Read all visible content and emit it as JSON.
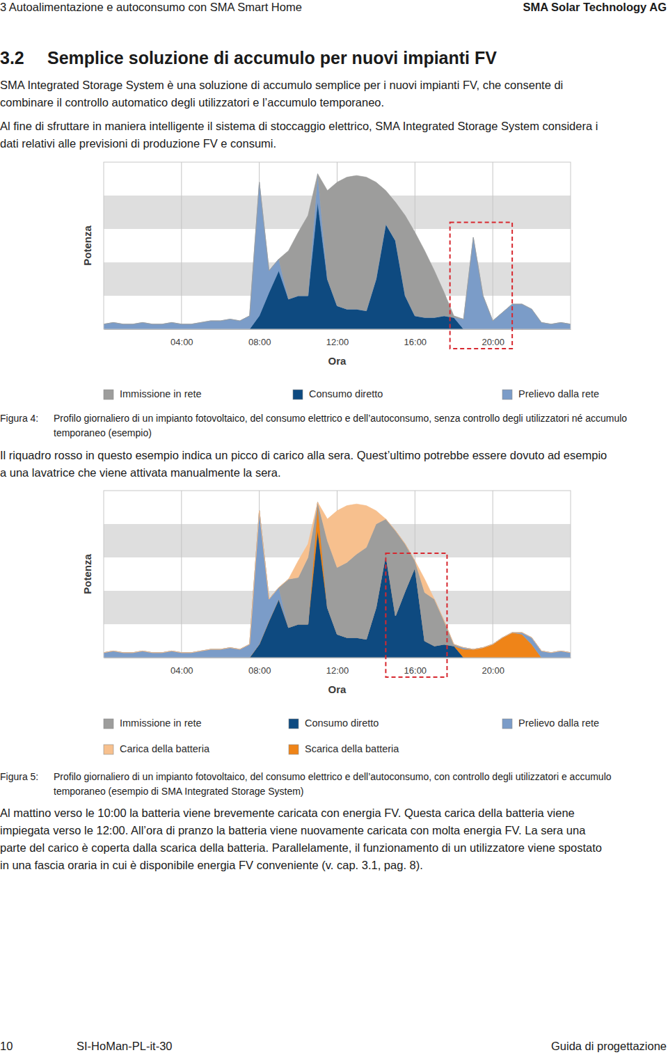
{
  "document": {
    "header_left": "3 Autoalimentazione e autoconsumo con SMA Smart Home",
    "header_right": "SMA Solar Technology AG",
    "section_number": "3.2",
    "section_title": "Semplice soluzione di accumulo per nuovi impianti FV",
    "intro": [
      [
        "SMA Integrated Storage System è una soluzione di accumulo semplice per i nuovi impianti FV, che consente di",
        "combinare il controllo automatico degli utilizzatori e l’accumulo temporaneo."
      ],
      [
        "Al fine di sfruttare in maniera intelligente il sistema di stoccaggio elettrico, SMA Integrated Storage System considera i",
        "dati relativi alle previsioni di produzione FV e consumi."
      ]
    ],
    "figures": [
      {
        "label": "Figura 4:",
        "caption": [
          "Profilo giornaliero di un impianto fotovoltaico, del consumo elettrico e dell’autoconsumo, senza controllo degli utilizzatori né accumulo",
          "temporaneo (esempio)"
        ]
      },
      {
        "label": "Figura 5:",
        "caption": [
          "Profilo giornaliero di un impianto fotovoltaico, del consumo elettrico e dell’autoconsumo, con controllo degli utilizzatori e accumulo",
          "temporaneo (esempio di SMA Integrated Storage System)"
        ]
      }
    ],
    "figure_notes": [
      [
        "Il riquadro rosso in questo esempio indica un picco di carico alla sera. Quest’ultimo potrebbe essere dovuto ad esempio",
        "a una lavatrice che viene attivata manualmente la sera."
      ],
      [
        "Al mattino verso le 10:00 la batteria viene brevemente caricata con energia FV. Questa carica della batteria viene",
        "impiegata verso le 12:00. All’ora di pranzo la batteria viene nuovamente caricata con molta energia FV. La sera una",
        "parte del carico è coperta dalla scarica della batteria. Parallelamente, il funzionamento di un utilizzatore viene spostato",
        "in una fascia oraria in cui è disponibile energia FV conveniente (v. cap. 3.1, pag. 8)."
      ]
    ],
    "footer_page": "10",
    "footer_code": "SI-HoMan-PL-it-30",
    "footer_right": "Guida di progettazione"
  },
  "chart_data": [
    {
      "type": "area",
      "stacked": true,
      "grid": true,
      "tick_labels": "x",
      "legend": "bottom",
      "xlabel": "Ora",
      "ylabel": "Potenza",
      "x": [
        0,
        0.5,
        1,
        1.5,
        2,
        2.5,
        3,
        3.5,
        4,
        4.5,
        5,
        5.5,
        6,
        6.5,
        7,
        7.5,
        8,
        8.5,
        9,
        9.5,
        10,
        10.5,
        11,
        11.5,
        12,
        12.5,
        13,
        13.5,
        14,
        14.5,
        15,
        15.5,
        16,
        16.5,
        17,
        17.5,
        18,
        18.5,
        19,
        19.5,
        20,
        20.5,
        21,
        21.5,
        22,
        22.5,
        23,
        23.5,
        24
      ],
      "xlim": [
        0,
        24
      ],
      "xticks": [
        {
          "value": 4,
          "label": "04:00"
        },
        {
          "value": 8,
          "label": "08:00"
        },
        {
          "value": 12,
          "label": "12:00"
        },
        {
          "value": 16,
          "label": "16:00"
        },
        {
          "value": 20,
          "label": "20:00"
        }
      ],
      "ylim": [
        0,
        100
      ],
      "yticks": [
        0,
        20,
        40,
        60,
        80,
        100
      ],
      "highlight_x": [
        17.8,
        21.0
      ],
      "highlight_top": 64,
      "series": [
        {
          "name": "Consumo diretto",
          "color": "#0e4a80",
          "values": [
            0,
            0,
            0,
            0,
            0,
            0,
            0,
            0,
            0,
            0,
            0,
            0,
            0,
            0,
            0,
            0,
            8,
            22,
            35,
            18,
            20,
            20,
            76,
            30,
            14,
            12,
            12,
            11,
            30,
            63,
            53,
            20,
            8,
            7,
            7,
            8,
            7,
            0,
            0,
            0,
            0,
            0,
            0,
            0,
            0,
            0,
            0,
            0,
            0
          ]
        },
        {
          "name": "Prelievo dalla rete",
          "color": "#7b9cc8",
          "values": [
            3,
            4,
            3,
            3,
            4,
            3,
            3,
            4,
            3,
            3,
            4,
            5,
            5,
            6,
            5,
            8,
            80,
            13,
            7,
            0,
            0,
            0,
            17,
            0,
            0,
            0,
            0,
            0,
            0,
            0,
            0,
            0,
            0,
            0,
            0,
            0,
            0,
            6,
            55,
            20,
            5,
            10,
            15,
            15,
            12,
            4,
            3,
            4,
            3
          ]
        },
        {
          "name": "Immissione in rete",
          "color": "#9d9d9c",
          "values": [
            0,
            0,
            0,
            0,
            0,
            0,
            0,
            0,
            0,
            0,
            0,
            0,
            0,
            0,
            0,
            0,
            0,
            0,
            0,
            29,
            38,
            48,
            0,
            53,
            74,
            79,
            80,
            80,
            58,
            20,
            23,
            48,
            50,
            40,
            28,
            14,
            1,
            0,
            0,
            0,
            0,
            0,
            0,
            0,
            0,
            0,
            0,
            0,
            0
          ]
        }
      ]
    },
    {
      "type": "area",
      "stacked": true,
      "grid": true,
      "tick_labels": "x",
      "legend": "bottom",
      "xlabel": "Ora",
      "ylabel": "Potenza",
      "x": [
        0,
        0.5,
        1,
        1.5,
        2,
        2.5,
        3,
        3.5,
        4,
        4.5,
        5,
        5.5,
        6,
        6.5,
        7,
        7.5,
        8,
        8.5,
        9,
        9.5,
        10,
        10.5,
        11,
        11.5,
        12,
        12.5,
        13,
        13.5,
        14,
        14.5,
        15,
        15.5,
        16,
        16.5,
        17,
        17.5,
        18,
        18.5,
        19,
        19.5,
        20,
        20.5,
        21,
        21.5,
        22,
        22.5,
        23,
        23.5,
        24
      ],
      "xlim": [
        0,
        24
      ],
      "xticks": [
        {
          "value": 4,
          "label": "04:00"
        },
        {
          "value": 8,
          "label": "08:00"
        },
        {
          "value": 12,
          "label": "12:00"
        },
        {
          "value": 16,
          "label": "16:00"
        },
        {
          "value": 20,
          "label": "20:00"
        }
      ],
      "ylim": [
        0,
        100
      ],
      "yticks": [
        0,
        20,
        40,
        60,
        80,
        100
      ],
      "highlight_x": [
        14.5,
        17.65
      ],
      "highlight_top": 62.5,
      "series": [
        {
          "name": "Consumo diretto",
          "color": "#0e4a80",
          "values": [
            0,
            0,
            0,
            0,
            0,
            0,
            0,
            0,
            0,
            0,
            0,
            0,
            0,
            0,
            0,
            0,
            8,
            22,
            35,
            18,
            20,
            20,
            76,
            30,
            14,
            12,
            12,
            11,
            30,
            62,
            25,
            40,
            54,
            10,
            7,
            8,
            7,
            0,
            0,
            0,
            0,
            0,
            0,
            0,
            0,
            0,
            0,
            0,
            0
          ]
        },
        {
          "name": "Scarica della batteria",
          "color": "#ef8418",
          "values": [
            0,
            0,
            0,
            0,
            0,
            0,
            0,
            0,
            0,
            0,
            0,
            0,
            0,
            0,
            0,
            0,
            0,
            0,
            0,
            0,
            0,
            0,
            17,
            0,
            0,
            0,
            0,
            0,
            0,
            0,
            0,
            0,
            0,
            0,
            0,
            0,
            0,
            5,
            5,
            6,
            8,
            12,
            15,
            14,
            8,
            0,
            0,
            0,
            0
          ]
        },
        {
          "name": "Prelievo dalla rete",
          "color": "#7b9cc8",
          "values": [
            3,
            4,
            3,
            3,
            4,
            3,
            3,
            4,
            3,
            3,
            4,
            5,
            5,
            6,
            5,
            8,
            80,
            13,
            7,
            0,
            0,
            0,
            0,
            0,
            0,
            0,
            0,
            0,
            0,
            0,
            0,
            0,
            0,
            0,
            0,
            0,
            0,
            1,
            0,
            0,
            0,
            0,
            0,
            1,
            4,
            4,
            3,
            4,
            3
          ]
        },
        {
          "name": "Immissione in rete",
          "color": "#9d9d9c",
          "values": [
            0,
            0,
            0,
            0,
            0,
            0,
            0,
            0,
            0,
            0,
            0,
            0,
            0,
            0,
            0,
            0,
            0,
            0,
            0,
            29,
            28,
            40,
            0,
            40,
            40,
            45,
            50,
            55,
            50,
            21,
            51,
            28,
            4,
            29,
            28,
            14,
            1,
            0,
            0,
            0,
            0,
            0,
            0,
            0,
            0,
            0,
            0,
            0,
            0
          ]
        },
        {
          "name": "Carica della batteria",
          "color": "#f7c08e",
          "values": [
            0,
            0,
            0,
            0,
            0,
            0,
            0,
            0,
            0,
            0,
            0,
            0,
            0,
            0,
            0,
            0,
            0,
            0,
            0,
            0,
            10,
            8,
            0,
            13,
            34,
            34,
            30,
            25,
            8,
            0,
            0,
            0,
            0,
            8,
            0,
            0,
            0,
            0,
            0,
            0,
            0,
            0,
            0,
            0,
            0,
            0,
            0,
            0,
            0
          ]
        }
      ]
    }
  ]
}
